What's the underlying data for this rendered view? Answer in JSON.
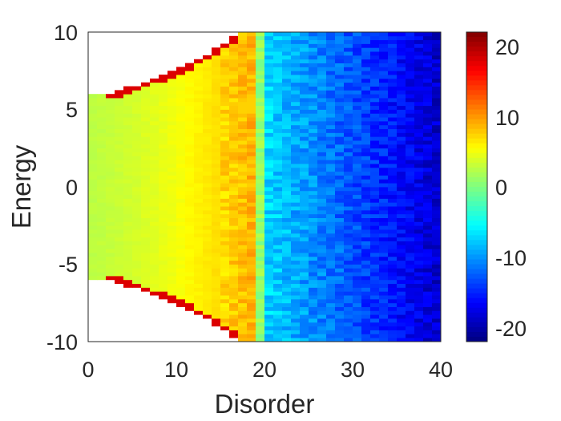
{
  "chart_data": {
    "type": "heatmap",
    "title": "",
    "xlabel": "Disorder",
    "ylabel": "Energy",
    "xlim": [
      0,
      40
    ],
    "ylim": [
      -10,
      10
    ],
    "x_ticks": [
      "0",
      "10",
      "20",
      "30",
      "40"
    ],
    "y_ticks": [
      "10",
      "5",
      "0",
      "-5",
      "-10"
    ],
    "colormap": "jet",
    "colorbar": {
      "range": [
        -22,
        22
      ],
      "ticks": [
        "20",
        "10",
        "0",
        "-10",
        "-20"
      ]
    },
    "grid": false,
    "bin_width_disorder": 1,
    "bin_height_energy": 0.25,
    "band_edge": [
      {
        "disorder": 0,
        "energy": 6.0
      },
      {
        "disorder": 2,
        "energy": 6.0
      },
      {
        "disorder": 4,
        "energy": 6.3
      },
      {
        "disorder": 6,
        "energy": 6.7
      },
      {
        "disorder": 8,
        "energy": 7.1
      },
      {
        "disorder": 10,
        "energy": 7.5
      },
      {
        "disorder": 12,
        "energy": 8.1
      },
      {
        "disorder": 14,
        "energy": 8.7
      },
      {
        "disorder": 16,
        "energy": 9.5
      },
      {
        "disorder": 17.5,
        "energy": 10.0
      }
    ],
    "profile": [
      {
        "disorder": 0,
        "value": 2.5
      },
      {
        "disorder": 5,
        "value": 3.5
      },
      {
        "disorder": 10,
        "value": 5
      },
      {
        "disorder": 15,
        "value": 7
      },
      {
        "disorder": 19,
        "value": 9
      },
      {
        "disorder": 20,
        "value": -7
      },
      {
        "disorder": 25,
        "value": -10
      },
      {
        "disorder": 30,
        "value": -13
      },
      {
        "disorder": 35,
        "value": -16
      },
      {
        "disorder": 40,
        "value": -19
      }
    ],
    "edge_value": 18
  }
}
